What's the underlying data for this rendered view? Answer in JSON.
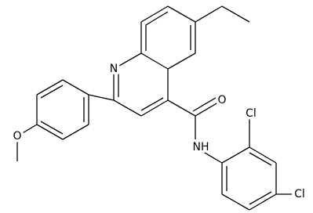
{
  "atoms": [
    {
      "label": "N"
    },
    {
      "label": "O"
    },
    {
      "label": "NH"
    },
    {
      "label": "Cl"
    },
    {
      "label": "Cl"
    },
    {
      "label": "O"
    }
  ]
}
